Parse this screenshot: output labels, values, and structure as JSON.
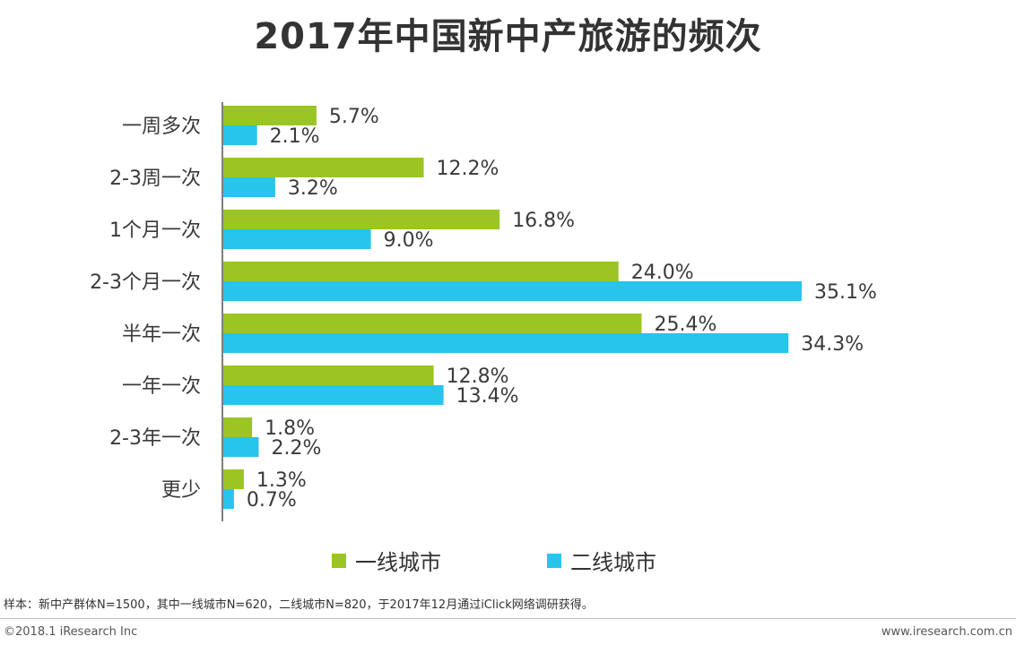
{
  "chart_data": {
    "type": "bar",
    "orientation": "horizontal",
    "title": "2017年中国新中产旅游的频次",
    "categories": [
      "一周多次",
      "2-3周一次",
      "1个月一次",
      "2-3个月一次",
      "半年一次",
      "一年一次",
      "2-3年一次",
      "更少"
    ],
    "series": [
      {
        "name": "一线城市",
        "color": "#9ac523",
        "values": [
          5.7,
          12.2,
          16.8,
          24.0,
          25.4,
          12.8,
          1.8,
          1.3
        ],
        "labels": [
          "5.7%",
          "12.2%",
          "16.8%",
          "24.0%",
          "25.4%",
          "12.8%",
          "1.8%",
          "1.3%"
        ]
      },
      {
        "name": "二线城市",
        "color": "#27c4ec",
        "values": [
          2.1,
          3.2,
          9.0,
          35.1,
          34.3,
          13.4,
          2.2,
          0.7
        ],
        "labels": [
          "2.1%",
          "3.2%",
          "9.0%",
          "35.1%",
          "34.3%",
          "13.4%",
          "2.2%",
          "0.7%"
        ]
      }
    ],
    "xlim": [
      0,
      35.1
    ],
    "xlabel": "",
    "ylabel": "",
    "legend": "bottom",
    "grid": false
  },
  "note": "样本：新中产群体N=1500，其中一线城市N=620，二线城市N=820，于2017年12月通过iClick网络调研获得。",
  "footer": {
    "copyright": "©2018.1 iResearch Inc",
    "website": "www.iresearch.com.cn"
  }
}
